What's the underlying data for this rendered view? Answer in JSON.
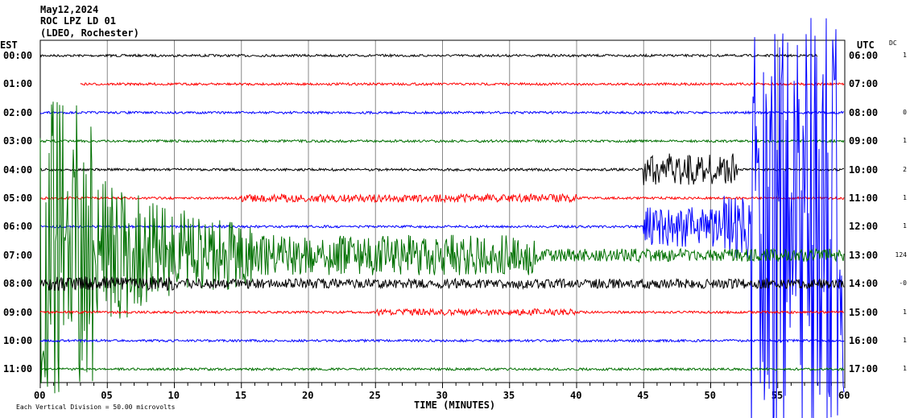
{
  "chart_data": {
    "type": "line",
    "title_lines": [
      "May12,2024",
      "ROC LPZ LD 01",
      "(LDEO, Rochester)"
    ],
    "left_axis_label": "EST",
    "right_axis_label": "UTC",
    "dc_label": "DC",
    "xlabel": "TIME (MINUTES)",
    "xlim": [
      0,
      60
    ],
    "x_ticks": [
      "00",
      "05",
      "10",
      "15",
      "20",
      "25",
      "30",
      "35",
      "40",
      "45",
      "50",
      "55",
      "60"
    ],
    "scale_note": "Each Vertical Division =   50.00 microvolts",
    "grid": true,
    "rows": [
      {
        "est": "00:00",
        "utc": "06:00",
        "dc": "1",
        "color": "#000000"
      },
      {
        "est": "01:00",
        "utc": "07:00",
        "dc": "",
        "color": "#ff0000"
      },
      {
        "est": "02:00",
        "utc": "08:00",
        "dc": "0",
        "color": "#0000ff"
      },
      {
        "est": "03:00",
        "utc": "09:00",
        "dc": "1",
        "color": "#007000"
      },
      {
        "est": "04:00",
        "utc": "10:00",
        "dc": "2",
        "color": "#000000"
      },
      {
        "est": "05:00",
        "utc": "11:00",
        "dc": "1",
        "color": "#ff0000"
      },
      {
        "est": "06:00",
        "utc": "12:00",
        "dc": "1",
        "color": "#0000ff"
      },
      {
        "est": "07:00",
        "utc": "13:00",
        "dc": "124",
        "color": "#007000"
      },
      {
        "est": "08:00",
        "utc": "14:00",
        "dc": "-0",
        "color": "#000000"
      },
      {
        "est": "09:00",
        "utc": "15:00",
        "dc": "1",
        "color": "#ff0000"
      },
      {
        "est": "10:00",
        "utc": "16:00",
        "dc": "1",
        "color": "#0000ff"
      },
      {
        "est": "11:00",
        "utc": "17:00",
        "dc": "1",
        "color": "#007000"
      }
    ]
  }
}
